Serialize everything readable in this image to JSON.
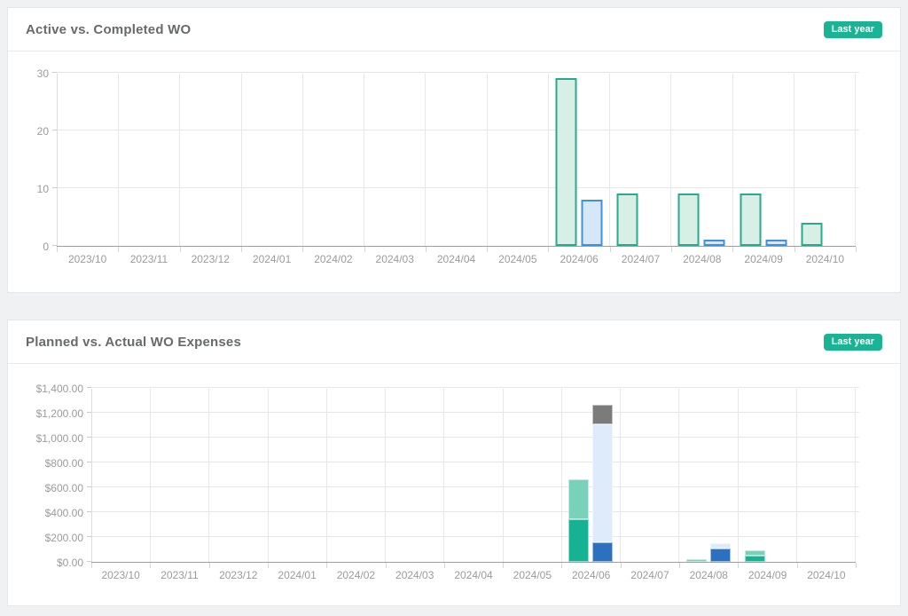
{
  "panels": [
    {
      "title": "Active vs. Completed WO",
      "badge": "Last year"
    },
    {
      "title": "Planned vs. Actual WO Expenses",
      "badge": "Last year"
    }
  ],
  "colors": {
    "accent_badge": "#1ab394",
    "active_fill": "#d8efe6",
    "active_border": "#2aa98f",
    "completed_fill": "#d6e7f8",
    "completed_border": "#4190d8",
    "planned_dark": "#17b194",
    "planned_light": "#7ad1ba",
    "actual_dark_blue": "#2b71c0",
    "actual_light_blue": "#ddebfa",
    "actual_gray": "#7b7b7b"
  },
  "chart_data": [
    {
      "type": "bar",
      "title": "Active vs. Completed WO",
      "categories": [
        "2023/10",
        "2023/11",
        "2023/12",
        "2024/01",
        "2024/02",
        "2024/03",
        "2024/04",
        "2024/05",
        "2024/06",
        "2024/07",
        "2024/08",
        "2024/09",
        "2024/10"
      ],
      "series": [
        {
          "name": "Active",
          "fill": "#d8efe6",
          "border": "#2aa98f",
          "values": [
            0,
            0,
            0,
            0,
            0,
            0,
            0,
            0,
            29,
            9,
            9,
            9,
            4
          ]
        },
        {
          "name": "Completed",
          "fill": "#d6e7f8",
          "border": "#4190d8",
          "values": [
            0,
            0,
            0,
            0,
            0,
            0,
            0,
            0,
            8,
            0,
            1,
            1,
            0
          ]
        }
      ],
      "ylim": [
        0,
        30
      ],
      "ytick_values": [
        0,
        10,
        20,
        30
      ],
      "ytick_labels": [
        "0",
        "10",
        "20",
        "30"
      ],
      "grid": true,
      "legend": "none"
    },
    {
      "type": "stacked-bar",
      "title": "Planned vs. Actual WO Expenses",
      "categories": [
        "2023/10",
        "2023/11",
        "2023/12",
        "2024/01",
        "2024/02",
        "2024/03",
        "2024/04",
        "2024/05",
        "2024/06",
        "2024/07",
        "2024/08",
        "2024/09",
        "2024/10"
      ],
      "groups": [
        {
          "name": "Planned",
          "segments": [
            {
              "name": "planned-lower",
              "color": "#17b194",
              "values": [
                0,
                0,
                0,
                0,
                0,
                0,
                0,
                0,
                340,
                0,
                0,
                50,
                0
              ]
            },
            {
              "name": "planned-upper",
              "color": "#7ad1ba",
              "values": [
                0,
                0,
                0,
                0,
                0,
                0,
                0,
                0,
                320,
                0,
                20,
                40,
                0
              ]
            }
          ]
        },
        {
          "name": "Actual",
          "segments": [
            {
              "name": "actual-lower",
              "color": "#2b71c0",
              "values": [
                0,
                0,
                0,
                0,
                0,
                0,
                0,
                0,
                160,
                0,
                110,
                0,
                0
              ]
            },
            {
              "name": "actual-middle",
              "color": "#ddebfa",
              "values": [
                0,
                0,
                0,
                0,
                0,
                0,
                0,
                0,
                950,
                0,
                40,
                0,
                0
              ]
            },
            {
              "name": "actual-upper",
              "color": "#7b7b7b",
              "values": [
                0,
                0,
                0,
                0,
                0,
                0,
                0,
                0,
                160,
                0,
                0,
                0,
                0
              ]
            }
          ]
        }
      ],
      "ylim": [
        0,
        1400
      ],
      "ytick_values": [
        0,
        200,
        400,
        600,
        800,
        1000,
        1200,
        1400
      ],
      "ytick_labels": [
        "$0.00",
        "$200.00",
        "$400.00",
        "$600.00",
        "$800.00",
        "$1,000.00",
        "$1,200.00",
        "$1,400.00"
      ],
      "grid": true,
      "legend": "none"
    }
  ]
}
